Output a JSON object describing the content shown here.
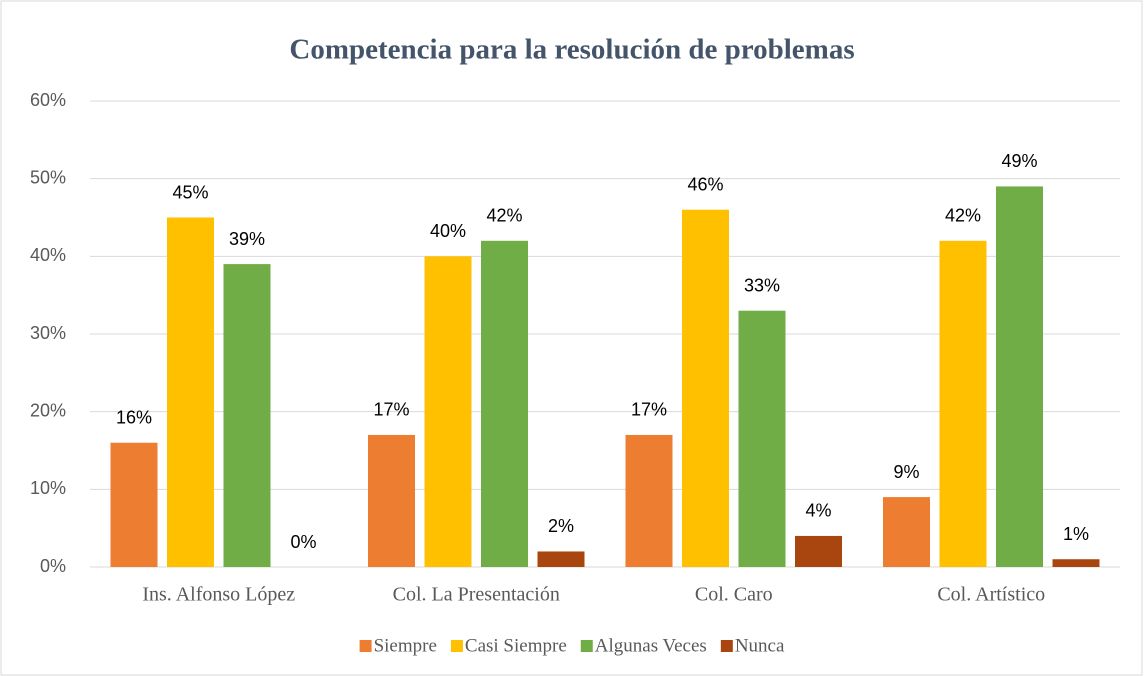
{
  "chart_data": {
    "type": "bar",
    "title": "Competencia para la resolución de problemas",
    "categories": [
      "Ins. Alfonso López",
      "Col. La Presentación",
      "Col. Caro",
      "Col. Artístico"
    ],
    "series": [
      {
        "name": "Siempre",
        "color": "#ed7d31",
        "values": [
          16,
          17,
          17,
          9
        ],
        "value_labels": [
          "16%",
          "17%",
          "17%",
          "9%"
        ]
      },
      {
        "name": "Casi Siempre",
        "color": "#ffc000",
        "values": [
          45,
          40,
          46,
          42
        ],
        "value_labels": [
          "45%",
          "40%",
          "46%",
          "42%"
        ]
      },
      {
        "name": "Algunas Veces",
        "color": "#70ad47",
        "values": [
          39,
          42,
          33,
          49
        ],
        "value_labels": [
          "39%",
          "42%",
          "33%",
          "49%"
        ]
      },
      {
        "name": "Nunca",
        "color": "#a9460f",
        "values": [
          0,
          2,
          4,
          1
        ],
        "value_labels": [
          "0%",
          "2%",
          "4%",
          "1%"
        ]
      }
    ],
    "ylim": [
      0,
      60
    ],
    "yticks": [
      {
        "value": 0,
        "label": "0%"
      },
      {
        "value": 10,
        "label": "10%"
      },
      {
        "value": 20,
        "label": "20%"
      },
      {
        "value": 30,
        "label": "30%"
      },
      {
        "value": 40,
        "label": "40%"
      },
      {
        "value": 50,
        "label": "50%"
      },
      {
        "value": 60,
        "label": "60%"
      }
    ],
    "grid": true,
    "legend": "bottom"
  }
}
